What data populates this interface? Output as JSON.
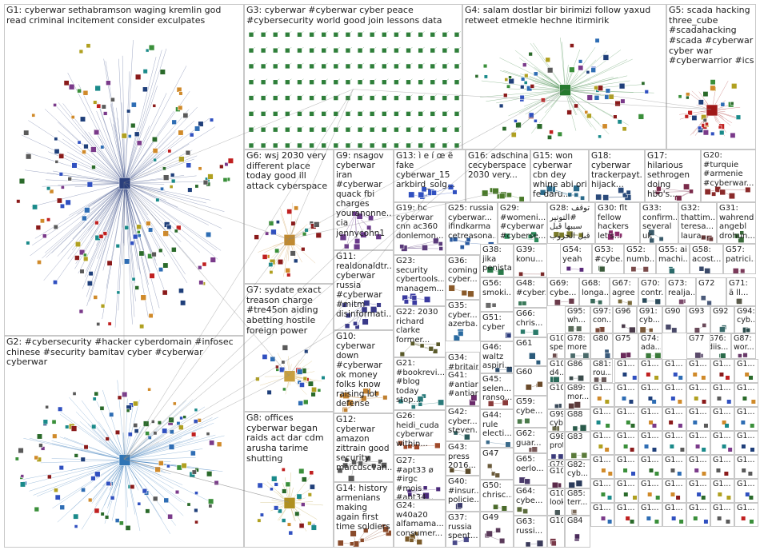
{
  "palette": [
    "#1f3f7a",
    "#2e6db4",
    "#3a8f3a",
    "#2a6a2a",
    "#8a1a1a",
    "#c02020",
    "#d08a2a",
    "#7a3a8a",
    "#1a8a8a",
    "#5a5a5a",
    "#b0a020",
    "#3050c0"
  ],
  "groups": [
    {
      "id": "G1",
      "label": "G1: cyberwar sethabramson waging kremlin god read criminal incitement consider exculpates",
      "hub": "sethabramson",
      "color": "#2b3f7c"
    },
    {
      "id": "G2",
      "label": "G2: #cybersecurity #hacker cyberdomain #infosec chinese #security bamitav cyber #cyberwar cyberwar",
      "hub": "",
      "color": "#2e74b5"
    },
    {
      "id": "G3",
      "label": "G3: cyberwar #cyberwar cyber peace #cybersecurity world good join lessons data",
      "hub": "",
      "color": "#2f7f3a"
    },
    {
      "id": "G4",
      "label": "G4: salam dostlar bir birimizi follow yaxud retweet etmekle hechne itirmirik",
      "hub": "",
      "color": "#267a2e"
    },
    {
      "id": "G5",
      "label": "G5: scada hacking three_cube #scadahacking #scada #cyberwar cyber war #cyberwarrior #ics",
      "hub": "",
      "color": "#a01818"
    },
    {
      "id": "G6",
      "label": "G6: wsj 2030 very different place today good ill attack cyberspace",
      "hub": "",
      "color": "#c08a30"
    },
    {
      "id": "G7",
      "label": "G7: sydate exact treason charge #tre45on aiding abetting hostile foreign power",
      "hub": "",
      "color": "#c8a040"
    },
    {
      "id": "G8",
      "label": "G8: offices cyberwar began raids act dar cdm arusha tarime shutting",
      "hub": "",
      "color": "#b09020"
    },
    {
      "id": "G9",
      "label": "G9: nsagov cyberwar iran #cyberwar quack fbi charges youranonne... cia jennycohn1",
      "hub": "",
      "color": "#6a3a8a"
    },
    {
      "id": "G10",
      "label": "G10: cyberwar down #cyberwar ok money folks know raising lot defense",
      "hub": "",
      "color": "#c08030"
    },
    {
      "id": "G11",
      "label": "G11: realdonaldtr... cyberwar russia #cyberwar #mitm disinformati...",
      "hub": "",
      "color": "#3a3a8a"
    },
    {
      "id": "G12",
      "label": "G12: cyberwar amazon zittrain good security marcuscvan...",
      "hub": "",
      "color": "#5a5a5a"
    },
    {
      "id": "G13",
      "label": "G13: ì e í œ ë fake cyberwar_15 arkbird_solg...",
      "hub": "",
      "color": "#3050c0"
    },
    {
      "id": "G14",
      "label": "G14: history armenians making again first time soldiers",
      "hub": "",
      "color": "#8a4a2a"
    },
    {
      "id": "G15",
      "label": "G15: won cyberwar cbn dey whine abi ori fe daru...",
      "hub": "",
      "color": "#2a6a8a"
    },
    {
      "id": "G16",
      "label": "G16: adschina cecyberspace 2030 very...",
      "hub": "",
      "color": "#4a7a2a"
    },
    {
      "id": "G17",
      "label": "G17: hilarious sethrogen doing hbo's...",
      "hub": "",
      "color": "#7a2a4a"
    },
    {
      "id": "G18",
      "label": "G18: cyberwar trackerpayt... hijack...",
      "hub": "",
      "color": "#2a4a7a"
    },
    {
      "id": "G19",
      "label": "G19: hc cyberwar cnn ac360 donlemon...",
      "hub": "",
      "color": "#5a3a7a"
    },
    {
      "id": "G20",
      "label": "G20: #turquie #armenie #cyberwar...",
      "hub": "",
      "color": "#8a2a2a"
    },
    {
      "id": "G21",
      "label": "G21: #bookrevi... #blog today stop...",
      "hub": "",
      "color": "#2a7a7a"
    },
    {
      "id": "G22",
      "label": "G22: 2030 richard clarke former...",
      "hub": "",
      "color": "#5a5a2a"
    },
    {
      "id": "G23",
      "label": "G23: security cybertools... managem...",
      "hub": "",
      "color": "#3a3aa0"
    },
    {
      "id": "G24",
      "label": "G24: w40a20 alfamama... consumer...",
      "hub": "",
      "color": "#7a5a2a"
    },
    {
      "id": "G25",
      "label": "G25: russia cyberwar... ifindkarma cetreasona...",
      "hub": "",
      "color": "#2a5aa0"
    },
    {
      "id": "G26",
      "label": "G26: heidi_cuda cyberwar within...",
      "hub": "",
      "color": "#a04a2a"
    },
    {
      "id": "G27",
      "label": "G27: #apt33 ø #irgc #mois #apt34...",
      "hub": "",
      "color": "#4a2a7a"
    },
    {
      "id": "G28",
      "label": "G28: ﺗﻮﻗﻒ #التوتير سببها قبل قبل الحروب",
      "hub": "",
      "color": "#7a7a2a"
    },
    {
      "id": "G29",
      "label": "G29: #womeni... #cyberwar #cyberse...",
      "hub": "",
      "color": "#2a8a5a"
    },
    {
      "id": "G30",
      "label": "G30: flt fellow hackers let's...",
      "hub": "",
      "color": "#8a2a6a"
    },
    {
      "id": "G31",
      "label": "G31: wahrend angebl drohun...",
      "hub": "",
      "color": "#3a6a3a"
    },
    {
      "id": "G32",
      "label": "G32: thattim... teresa... laura...",
      "hub": "",
      "color": "#6a3a3a"
    },
    {
      "id": "G33",
      "label": "G33: confirm... several uk",
      "hub": "",
      "color": "#3a5a6a"
    },
    {
      "id": "G34",
      "label": "G34: #britain offensi...",
      "hub": "",
      "color": "#6a6a3a"
    },
    {
      "id": "G35",
      "label": "G35: cyber... azerba...",
      "hub": "",
      "color": "#2a6aa0"
    },
    {
      "id": "G36",
      "label": "G36: coming cyber...",
      "hub": "",
      "color": "#8a5a2a"
    },
    {
      "id": "G37",
      "label": "G37: russia spent...",
      "hub": "",
      "color": "#4a4a8a"
    },
    {
      "id": "G38",
      "label": "G38: jika penista...",
      "hub": "",
      "color": "#2a7a4a"
    },
    {
      "id": "G39",
      "label": "G39: konu...",
      "hub": "",
      "color": "#7a2a2a"
    },
    {
      "id": "G40",
      "label": "G40: #insur... policie...",
      "hub": "",
      "color": "#3a3a6a"
    },
    {
      "id": "G41",
      "label": "G41: #antiar... #antiar...",
      "hub": "",
      "color": "#6a2a6a"
    },
    {
      "id": "G42",
      "label": "G42: cyber... steven...",
      "hub": "",
      "color": "#2a5a5a"
    },
    {
      "id": "G43",
      "label": "G43: press 2016...",
      "hub": "",
      "color": "#5a4a2a"
    },
    {
      "id": "G44",
      "label": "G44: rule electi...",
      "hub": "",
      "color": "#3a6a8a"
    },
    {
      "id": "G45",
      "label": "G45: selen... ranso...",
      "hub": "",
      "color": "#8a3a3a"
    },
    {
      "id": "G46",
      "label": "G46: waltz aspiri...",
      "hub": "",
      "color": "#2a4a6a"
    },
    {
      "id": "G47",
      "label": "G47",
      "hub": "",
      "color": "#6a5a3a"
    },
    {
      "id": "G48",
      "label": "G48: #cyber...",
      "hub": "",
      "color": "#3a7a5a"
    },
    {
      "id": "G49",
      "label": "G49",
      "hub": "",
      "color": "#5a3a5a"
    },
    {
      "id": "G50",
      "label": "G50: chrisc...",
      "hub": "",
      "color": "#4a6a2a"
    },
    {
      "id": "G51",
      "label": "G51: cyber",
      "hub": "",
      "color": "#2a3a7a"
    },
    {
      "id": "G52",
      "label": "G52: numb...",
      "hub": "",
      "color": "#7a4a4a"
    },
    {
      "id": "G53",
      "label": "G53: #cybe...",
      "hub": "",
      "color": "#3a5a3a"
    },
    {
      "id": "G54",
      "label": "G54: yeah",
      "hub": "",
      "color": "#5a2a7a"
    },
    {
      "id": "G55",
      "label": "G55: ai machi...",
      "hub": "",
      "color": "#2a6a6a"
    },
    {
      "id": "G56",
      "label": "G56: smoki...",
      "hub": "",
      "color": "#6a6a6a"
    },
    {
      "id": "G57",
      "label": "G57: patrici...",
      "hub": "",
      "color": "#7a3a5a"
    },
    {
      "id": "G58",
      "label": "G58: acost...",
      "hub": "",
      "color": "#3a4a6a"
    },
    {
      "id": "G59",
      "label": "G59: cybe...",
      "hub": "",
      "color": "#4a7a4a"
    },
    {
      "id": "G60",
      "label": "G60",
      "hub": "",
      "color": "#6a4a2a"
    },
    {
      "id": "G61",
      "label": "G61",
      "hub": "",
      "color": "#2a5a7a"
    },
    {
      "id": "G62",
      "label": "G62: guar...",
      "hub": "",
      "color": "#7a5a5a"
    },
    {
      "id": "G63",
      "label": "G63: russi...",
      "hub": "",
      "color": "#3a3a5a"
    },
    {
      "id": "G64",
      "label": "G64: cybe...",
      "hub": "",
      "color": "#5a6a3a"
    },
    {
      "id": "G65",
      "label": "G65: oerlo...",
      "hub": "",
      "color": "#4a3a6a"
    },
    {
      "id": "G66",
      "label": "G66: chris...",
      "hub": "",
      "color": "#2a7a6a"
    },
    {
      "id": "G67",
      "label": "G67: agree",
      "hub": "",
      "color": "#7a6a3a"
    },
    {
      "id": "G68",
      "label": "G68: longa...",
      "hub": "",
      "color": "#3a6a5a"
    },
    {
      "id": "G69",
      "label": "G69: cybe...",
      "hub": "",
      "color": "#6a3a4a"
    },
    {
      "id": "G70",
      "label": "G70: contr...",
      "hub": "",
      "color": "#2a4a5a"
    },
    {
      "id": "G71",
      "label": "G71: ä ll...",
      "hub": "",
      "color": "#5a5a4a"
    },
    {
      "id": "G72",
      "label": "G72",
      "hub": "",
      "color": "#4a5a7a"
    },
    {
      "id": "G73",
      "label": "G73: realja...",
      "hub": "",
      "color": "#7a4a6a"
    },
    {
      "id": "G74",
      "label": "G74: ada...",
      "hub": "",
      "color": "#3a7a3a"
    },
    {
      "id": "G75",
      "label": "G75",
      "hub": "",
      "color": "#6a2a5a"
    },
    {
      "id": "G76",
      "label": "G76: diis...",
      "hub": "",
      "color": "#2a6a4a"
    },
    {
      "id": "G77",
      "label": "G77",
      "hub": "",
      "color": "#5a4a6a"
    },
    {
      "id": "G78",
      "label": "G78: more",
      "hub": "",
      "color": "#4a6a6a"
    },
    {
      "id": "G79",
      "label": "G79",
      "hub": "",
      "color": "#7a3a3a"
    },
    {
      "id": "G80",
      "label": "G80",
      "hub": "",
      "color": "#3a5a7a"
    },
    {
      "id": "G81",
      "label": "G81: rou...",
      "hub": "",
      "color": "#6a5a5a"
    },
    {
      "id": "G82",
      "label": "G82: cyb...",
      "hub": "",
      "color": "#2a3a5a"
    },
    {
      "id": "G83",
      "label": "G83",
      "hub": "",
      "color": "#5a7a3a"
    },
    {
      "id": "G84",
      "label": "G84",
      "hub": "",
      "color": "#4a2a5a"
    },
    {
      "id": "G85",
      "label": "G85: terr...",
      "hub": "",
      "color": "#7a6a5a"
    },
    {
      "id": "G86",
      "label": "G86",
      "hub": "",
      "color": "#3a4a4a"
    },
    {
      "id": "G87",
      "label": "G87: wor...",
      "hub": "",
      "color": "#6a3a6a"
    },
    {
      "id": "G88",
      "label": "G88",
      "hub": "",
      "color": "#2a5a4a"
    },
    {
      "id": "G89",
      "label": "G89: mor...",
      "hub": "",
      "color": "#5a3a3a"
    },
    {
      "id": "G90",
      "label": "G90",
      "hub": "",
      "color": "#4a4a6a"
    },
    {
      "id": "G91",
      "label": "G91: cyb...",
      "hub": "",
      "color": "#7a5a3a"
    },
    {
      "id": "G92",
      "label": "G92",
      "hub": "",
      "color": "#3a6a6a"
    },
    {
      "id": "G93",
      "label": "G93",
      "hub": "",
      "color": "#6a4a5a"
    },
    {
      "id": "G94",
      "label": "G94: cyb...",
      "hub": "",
      "color": "#2a4a4a"
    },
    {
      "id": "G95",
      "label": "G95: wh...",
      "hub": "",
      "color": "#5a6a5a"
    },
    {
      "id": "G96",
      "label": "G96",
      "hub": "",
      "color": "#4a3a4a"
    },
    {
      "id": "G97",
      "label": "G97: con...",
      "hub": "",
      "color": "#7a4a3a"
    },
    {
      "id": "G98",
      "label": "G98: prot...",
      "hub": "",
      "color": "#3a3a7a"
    },
    {
      "id": "G99",
      "label": "G99: cyb...",
      "hub": "",
      "color": "#6a6a4a"
    },
    {
      "id": "G100",
      "label": "G100: d4...",
      "hub": "",
      "color": "#2a6a5a"
    },
    {
      "id": "G101",
      "label": "G101",
      "hub": "",
      "color": "#5a2a4a"
    },
    {
      "id": "G102",
      "label": "G102: look...",
      "hub": "",
      "color": "#4a5a5a"
    },
    {
      "id": "G103",
      "label": "G103",
      "hub": "",
      "color": "#7a3a4a"
    },
    {
      "id": "G104",
      "label": "G104",
      "hub": "",
      "color": "#3a4a5a"
    },
    {
      "id": "G105",
      "label": "G105: spe...",
      "hub": "",
      "color": "#6a4a4a"
    },
    {
      "id": "G1x",
      "label": "G1...",
      "hub": "",
      "color": "#606060"
    }
  ]
}
